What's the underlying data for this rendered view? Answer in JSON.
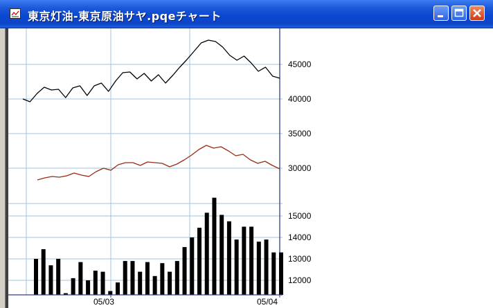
{
  "window": {
    "title": "東京灯油‐東京原油サヤ.pqeチャート",
    "icon": "chart-window-icon",
    "controls": [
      "minimize-icon",
      "maximize-icon",
      "close-icon"
    ]
  },
  "chart_data": {
    "type": "line",
    "x_labels": [
      "05/03",
      "05/04"
    ],
    "price_axis_ticks": [
      45000,
      40000,
      35000,
      30000
    ],
    "volume_axis_ticks": [
      15000,
      14000,
      13000,
      12000
    ],
    "series": [
      {
        "color": "#000000",
        "values": [
          40000,
          39600,
          40800,
          41700,
          41300,
          41400,
          40200,
          41600,
          41900,
          40500,
          41900,
          42300,
          41100,
          42600,
          43800,
          43900,
          42900,
          43700,
          42600,
          43500,
          42300,
          43400,
          44600,
          45700,
          46900,
          48100,
          48500,
          48300,
          47500,
          46300,
          45600,
          46200,
          45200,
          44000,
          44600,
          43300,
          43000
        ]
      },
      {
        "color": "#9b2a12",
        "values": [
          28300,
          28600,
          28800,
          28700,
          28900,
          29300,
          29000,
          28800,
          29500,
          30000,
          29700,
          30500,
          30800,
          30800,
          30400,
          30900,
          30800,
          30700,
          30200,
          30600,
          31200,
          31900,
          32700,
          33300,
          32900,
          33100,
          32500,
          31800,
          32000,
          31200,
          30700,
          31000,
          30400,
          29900
        ]
      },
      {
        "type": "bar",
        "color": "#000000",
        "values": [
          13000,
          13450,
          12700,
          13000,
          11400,
          12100,
          12850,
          12000,
          12450,
          12400,
          11500,
          11900,
          12900,
          12900,
          12400,
          12850,
          12200,
          12800,
          12400,
          12900,
          13550,
          14000,
          14450,
          15150,
          15850,
          15050,
          14750,
          13900,
          14500,
          14500,
          13800,
          13900,
          13300,
          13300
        ]
      }
    ]
  }
}
